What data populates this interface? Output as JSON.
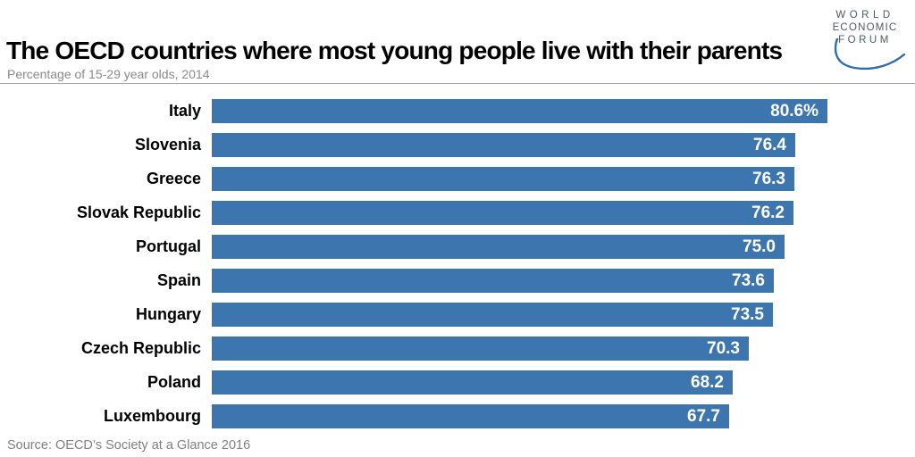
{
  "header": {
    "title": "The OECD countries where most young people live with their parents",
    "subtitle": "Percentage of 15-29 year olds, 2014"
  },
  "logo": {
    "lines": [
      "WORLD",
      "ECONOMIC",
      "FORUM"
    ],
    "text_color": "#4d5a63",
    "arc_color": "#2e6da9"
  },
  "chart_data": {
    "type": "bar",
    "orientation": "horizontal",
    "title": "The OECD countries where most young people live with their parents",
    "subtitle": "Percentage of 15-29 year olds, 2014",
    "xlabel": "",
    "ylabel": "",
    "xlim": [
      0,
      92
    ],
    "grid": false,
    "legend": false,
    "bar_color": "#3d76ae",
    "value_label_color": "#ffffff",
    "categories": [
      "Italy",
      "Slovenia",
      "Greece",
      "Slovak Republic",
      "Portugal",
      "Spain",
      "Hungary",
      "Czech Republic",
      "Poland",
      "Luxembourg"
    ],
    "values": [
      80.6,
      76.4,
      76.3,
      76.2,
      75.0,
      73.6,
      73.5,
      70.3,
      68.2,
      67.7
    ],
    "value_labels": [
      "80.6%",
      "76.4",
      "76.3",
      "76.2",
      "75.0",
      "73.6",
      "73.5",
      "70.3",
      "68.2",
      "67.7"
    ]
  },
  "source": "Source: OECD’s Society at a Glance 2016"
}
